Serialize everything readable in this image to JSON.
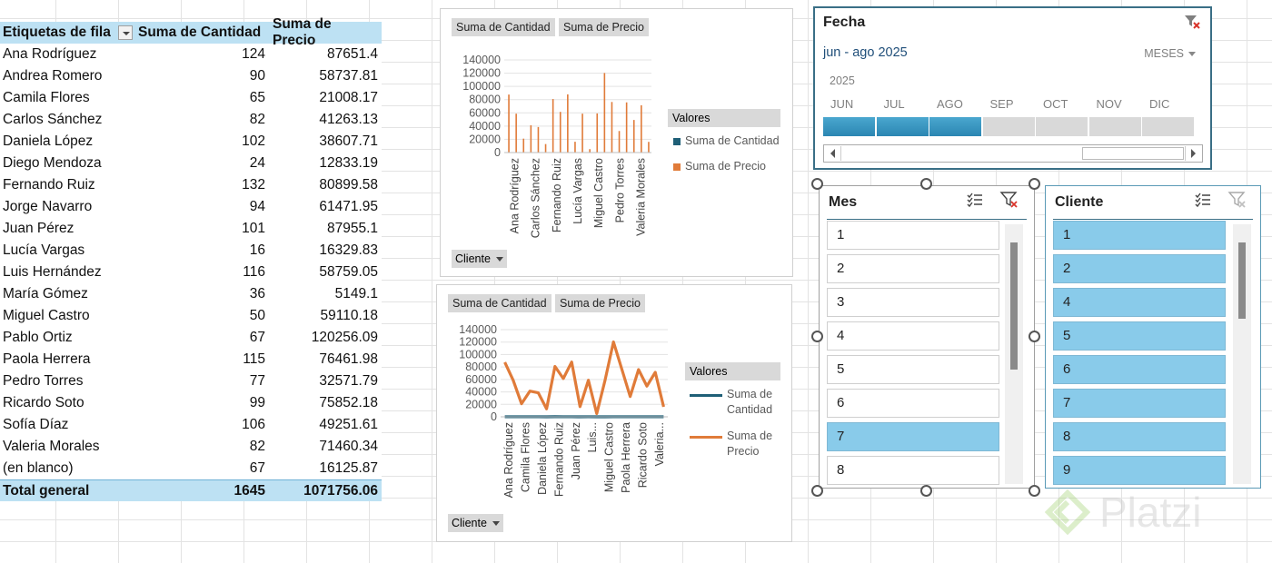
{
  "pivot": {
    "header": {
      "col1": "Etiquetas de fila",
      "col2": "Suma de Cantidad",
      "col3": "Suma de Precio"
    },
    "rows": [
      {
        "name": "Ana Rodríguez",
        "qty": "124",
        "price": "87651.4"
      },
      {
        "name": "Andrea Romero",
        "qty": "90",
        "price": "58737.81"
      },
      {
        "name": "Camila Flores",
        "qty": "65",
        "price": "21008.17"
      },
      {
        "name": "Carlos Sánchez",
        "qty": "82",
        "price": "41263.13"
      },
      {
        "name": "Daniela López",
        "qty": "102",
        "price": "38607.71"
      },
      {
        "name": "Diego Mendoza",
        "qty": "24",
        "price": "12833.19"
      },
      {
        "name": "Fernando Ruiz",
        "qty": "132",
        "price": "80899.58"
      },
      {
        "name": "Jorge Navarro",
        "qty": "94",
        "price": "61471.95"
      },
      {
        "name": "Juan Pérez",
        "qty": "101",
        "price": "87955.1"
      },
      {
        "name": "Lucía Vargas",
        "qty": "16",
        "price": "16329.83"
      },
      {
        "name": "Luis Hernández",
        "qty": "116",
        "price": "58759.05"
      },
      {
        "name": "María Gómez",
        "qty": "36",
        "price": "5149.1"
      },
      {
        "name": "Miguel Castro",
        "qty": "50",
        "price": "59110.18"
      },
      {
        "name": "Pablo Ortiz",
        "qty": "67",
        "price": "120256.09"
      },
      {
        "name": "Paola Herrera",
        "qty": "115",
        "price": "76461.98"
      },
      {
        "name": "Pedro Torres",
        "qty": "77",
        "price": "32571.79"
      },
      {
        "name": "Ricardo Soto",
        "qty": "99",
        "price": "75852.18"
      },
      {
        "name": "Sofía Díaz",
        "qty": "106",
        "price": "49251.61"
      },
      {
        "name": "Valeria Morales",
        "qty": "82",
        "price": "71460.34"
      },
      {
        "name": "(en blanco)",
        "qty": "67",
        "price": "16125.87"
      }
    ],
    "total": {
      "name": "Total general",
      "qty": "1645",
      "price": "1071756.06"
    }
  },
  "chart_buttons": {
    "field1": "Suma de Cantidad",
    "field2": "Suma de Precio",
    "axis_field": "Cliente",
    "legend_title": "Valores"
  },
  "chart_data": [
    {
      "type": "bar",
      "categories": [
        "Ana Rodríguez",
        "Andrea Romero",
        "Camila Flores",
        "Carlos Sánchez",
        "Daniela López",
        "Diego Mendoza",
        "Fernando Ruiz",
        "Jorge Navarro",
        "Juan Pérez",
        "Lucía Vargas",
        "Luis Hernández",
        "María Gómez",
        "Miguel Castro",
        "Pablo Ortiz",
        "Paola Herrera",
        "Pedro Torres",
        "Ricardo Soto",
        "Sofía Díaz",
        "Valeria Morales",
        "(en blanco)"
      ],
      "visible_tick_labels": [
        "Ana Rodríguez",
        "Carlos Sánchez",
        "Fernando Ruiz",
        "Lucía Vargas",
        "Miguel Castro",
        "Pedro Torres",
        "Valeria Morales"
      ],
      "series": [
        {
          "name": "Suma de Cantidad",
          "values": [
            124,
            90,
            65,
            82,
            102,
            24,
            132,
            94,
            101,
            16,
            116,
            36,
            50,
            67,
            115,
            77,
            99,
            106,
            82,
            67
          ]
        },
        {
          "name": "Suma de Precio",
          "values": [
            87651.4,
            58737.81,
            21008.17,
            41263.13,
            38607.71,
            12833.19,
            80899.58,
            61471.95,
            87955.1,
            16329.83,
            58759.05,
            5149.1,
            59110.18,
            120256.09,
            76461.98,
            32571.79,
            75852.18,
            49251.61,
            71460.34,
            16125.87
          ]
        }
      ],
      "ylim": [
        0,
        140000
      ],
      "yticks": [
        "140000",
        "120000",
        "100000",
        "80000",
        "60000",
        "40000",
        "20000",
        "0"
      ],
      "legend_position": "right",
      "colors": [
        "#1f5f77",
        "#e07b39"
      ]
    },
    {
      "type": "line",
      "categories": [
        "Ana Rodríguez",
        "Andrea Romero",
        "Camila Flores",
        "Carlos Sánchez",
        "Daniela López",
        "Diego Mendoza",
        "Fernando Ruiz",
        "Jorge Navarro",
        "Juan Pérez",
        "Lucía Vargas",
        "Luis Hernández",
        "María Gómez",
        "Miguel Castro",
        "Pablo Ortiz",
        "Paola Herrera",
        "Pedro Torres",
        "Ricardo Soto",
        "Sofía Díaz",
        "Valeria Morales",
        "(en blanco)"
      ],
      "visible_tick_labels": [
        "Ana Rodríguez",
        "Camila Flores",
        "Daniela López",
        "Fernando Ruiz",
        "Juan Pérez",
        "Luis...",
        "Miguel Castro",
        "Paola Herrera",
        "Ricardo Soto",
        "Valeria..."
      ],
      "series": [
        {
          "name": "Suma de Cantidad",
          "values": [
            124,
            90,
            65,
            82,
            102,
            24,
            132,
            94,
            101,
            16,
            116,
            36,
            50,
            67,
            115,
            77,
            99,
            106,
            82,
            67
          ]
        },
        {
          "name": "Suma de Precio",
          "values": [
            87651.4,
            58737.81,
            21008.17,
            41263.13,
            38607.71,
            12833.19,
            80899.58,
            61471.95,
            87955.1,
            16329.83,
            58759.05,
            5149.1,
            59110.18,
            120256.09,
            76461.98,
            32571.79,
            75852.18,
            49251.61,
            71460.34,
            16125.87
          ]
        }
      ],
      "ylim": [
        0,
        140000
      ],
      "yticks": [
        "140000",
        "120000",
        "100000",
        "80000",
        "60000",
        "40000",
        "20000",
        "0"
      ],
      "legend_position": "right",
      "legend_labels": [
        [
          "Suma de",
          "Cantidad"
        ],
        [
          "Suma de",
          "Precio"
        ]
      ],
      "colors": [
        "#1f5f77",
        "#e07b39"
      ]
    }
  ],
  "timeline": {
    "title": "Fecha",
    "range": "jun - ago 2025",
    "level": "MESES",
    "year": "2025",
    "months": [
      "JUN",
      "JUL",
      "AGO",
      "SEP",
      "OCT",
      "NOV",
      "DIC"
    ],
    "selected_months": 3,
    "clear_icon": "clear-filter-icon"
  },
  "slicer_mes": {
    "title": "Mes",
    "items": [
      "1",
      "2",
      "3",
      "4",
      "5",
      "6",
      "7",
      "8"
    ],
    "selected": [
      false,
      false,
      false,
      false,
      false,
      false,
      true,
      false
    ],
    "icons": [
      "multi-select-icon",
      "clear-filter-icon"
    ]
  },
  "slicer_cliente": {
    "title": "Cliente",
    "items": [
      "1",
      "2",
      "4",
      "5",
      "6",
      "7",
      "8",
      "9"
    ],
    "selected": [
      true,
      true,
      true,
      true,
      true,
      true,
      true,
      true
    ],
    "icons": [
      "multi-select-icon",
      "clear-filter-icon"
    ]
  },
  "watermark": "Platzi",
  "colors": {
    "accent": "#89cbea",
    "header": "#bde1f3",
    "timeline_border": "#3a6f86",
    "bar_orange": "#e07b39",
    "line_teal": "#1f5f77"
  }
}
